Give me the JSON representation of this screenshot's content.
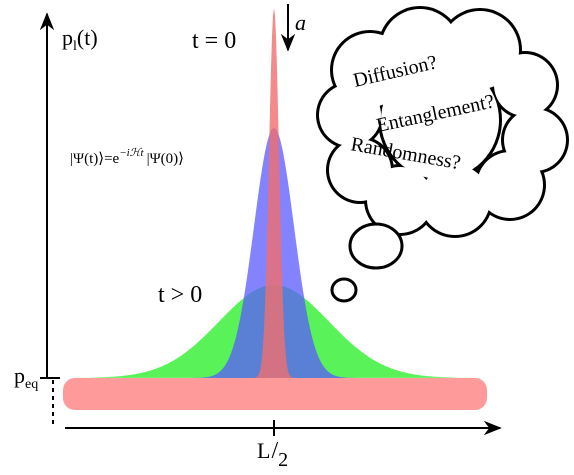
{
  "y_label": {
    "base": "p",
    "sub": "l",
    "rest": "(t)"
  },
  "t0_label": "t = 0",
  "arrow_label": "a",
  "t_pos_label": "t > 0",
  "equation": {
    "left": "|Ψ(t)⟩=e",
    "exponent": "−iℋt",
    "right": "|Ψ(0)⟩"
  },
  "peq_label": {
    "base": "p",
    "sub": "eq"
  },
  "x_tick_label": {
    "num": "L",
    "slash": "/",
    "den": "2"
  },
  "thought_bubble": {
    "lines": [
      "Diffusion?",
      "Entanglement?",
      "Randomness?"
    ]
  }
}
